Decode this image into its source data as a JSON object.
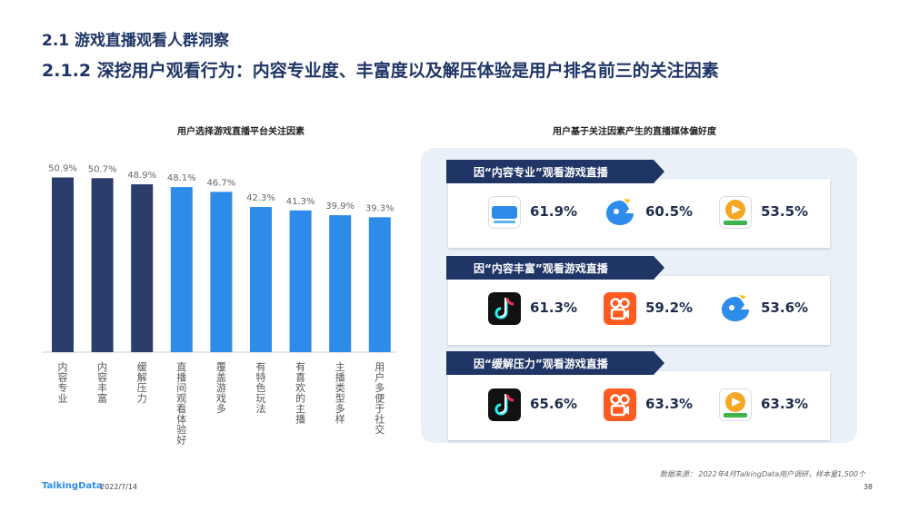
{
  "section_title": "2.1 游戏直播观看人群洞察",
  "headline": "2.1.2 深挖用户观看行为：内容专业度、丰富度以及解压体验是用户排名前三的关注因素",
  "left_chart_title": "用户选择游戏直播平台关注因素",
  "right_title": "用户基于关注因素产生的直播媒体偏好度",
  "chart_data": {
    "type": "bar",
    "title": "用户选择游戏直播平台关注因素",
    "categories": [
      "内容专业",
      "内容丰富",
      "缓解压力",
      "直播间观看体验好",
      "覆盖游戏多",
      "有特色玩法",
      "有喜欢的主播",
      "主播类型多样",
      "用户多便于社交"
    ],
    "values": [
      50.9,
      50.7,
      48.9,
      48.1,
      46.7,
      42.3,
      41.3,
      39.9,
      39.3
    ],
    "value_labels": [
      "50.9%",
      "50.7%",
      "48.9%",
      "48.1%",
      "46.7%",
      "42.3%",
      "41.3%",
      "39.9%",
      "39.3%"
    ],
    "ylim": [
      0,
      55
    ],
    "colors": [
      "#2a3d6b",
      "#2a3d6b",
      "#2a3d6b",
      "#2d8bea",
      "#2d8bea",
      "#2d8bea",
      "#2d8bea",
      "#2d8bea",
      "#2d8bea"
    ]
  },
  "preferences": [
    {
      "title": "因“内容专业”观看游戏直播",
      "items": [
        {
          "icon": "huya-logo-icon",
          "value": "61.9%"
        },
        {
          "icon": "douyu-logo-icon",
          "value": "60.5%"
        },
        {
          "icon": "huya-tiger-logo-icon",
          "value": "53.5%"
        }
      ]
    },
    {
      "title": "因“内容丰富”观看游戏直播",
      "items": [
        {
          "icon": "douyin-logo-icon",
          "value": "61.3%"
        },
        {
          "icon": "kuaishou-logo-icon",
          "value": "59.2%"
        },
        {
          "icon": "douyu-logo-icon",
          "value": "53.6%"
        }
      ]
    },
    {
      "title": "因“缓解压力”观看游戏直播",
      "items": [
        {
          "icon": "douyin-logo-icon",
          "value": "65.6%"
        },
        {
          "icon": "kuaishou-logo-icon",
          "value": "63.3%"
        },
        {
          "icon": "huya-tiger-logo-icon",
          "value": "63.3%"
        }
      ]
    }
  ],
  "colors": {
    "dark_bar": "#2a3d6b",
    "light_bar": "#2d8bea",
    "banner": "#1f3566",
    "panel": "#e9f0f8"
  },
  "footer": {
    "brand": "TalkingData",
    "date": "2022/7/14",
    "source": "数据来源：  2022年4月TalkingData用户调研，样本量1,500个",
    "page": "38"
  }
}
